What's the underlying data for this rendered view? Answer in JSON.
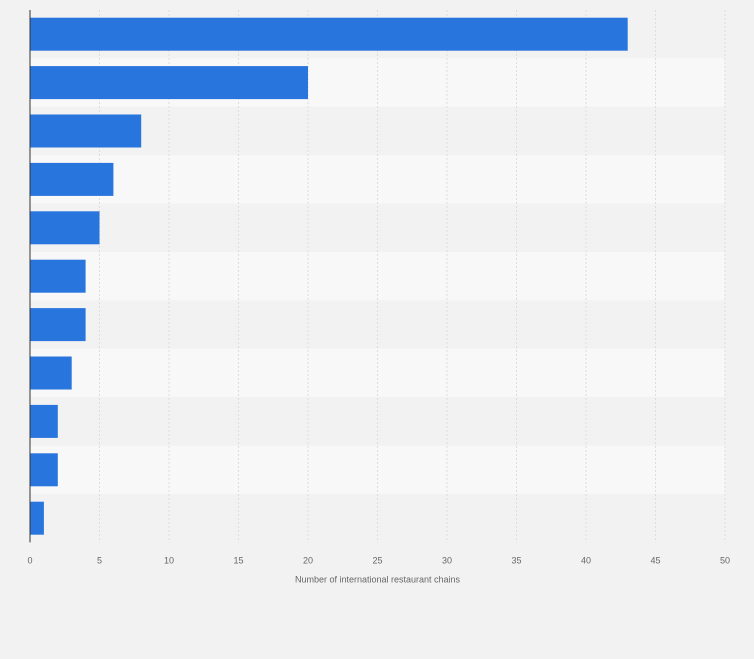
{
  "chart_data": {
    "type": "bar",
    "orientation": "horizontal",
    "categories": [
      "",
      "",
      "",
      "",
      "",
      "",
      "",
      "",
      "",
      "",
      ""
    ],
    "series": [
      {
        "values": [
          43,
          20,
          8,
          6,
          5,
          4,
          4,
          3,
          2,
          2,
          1
        ]
      }
    ],
    "title": "",
    "xlabel": "Number of international restaurant chains",
    "ylabel": "",
    "xlim": [
      0,
      50
    ],
    "x_ticks": [
      0,
      5,
      10,
      15,
      20,
      25,
      30,
      35,
      40,
      45,
      50
    ],
    "grid": true,
    "legend": "none"
  },
  "colors": {
    "background": "#f2f2f2",
    "band_light": "#f8f8f8",
    "band_dark": "#f2f2f2",
    "bar": "#2876dd",
    "grid": "#dddddd",
    "axis": "#333333",
    "text": "#666666"
  }
}
